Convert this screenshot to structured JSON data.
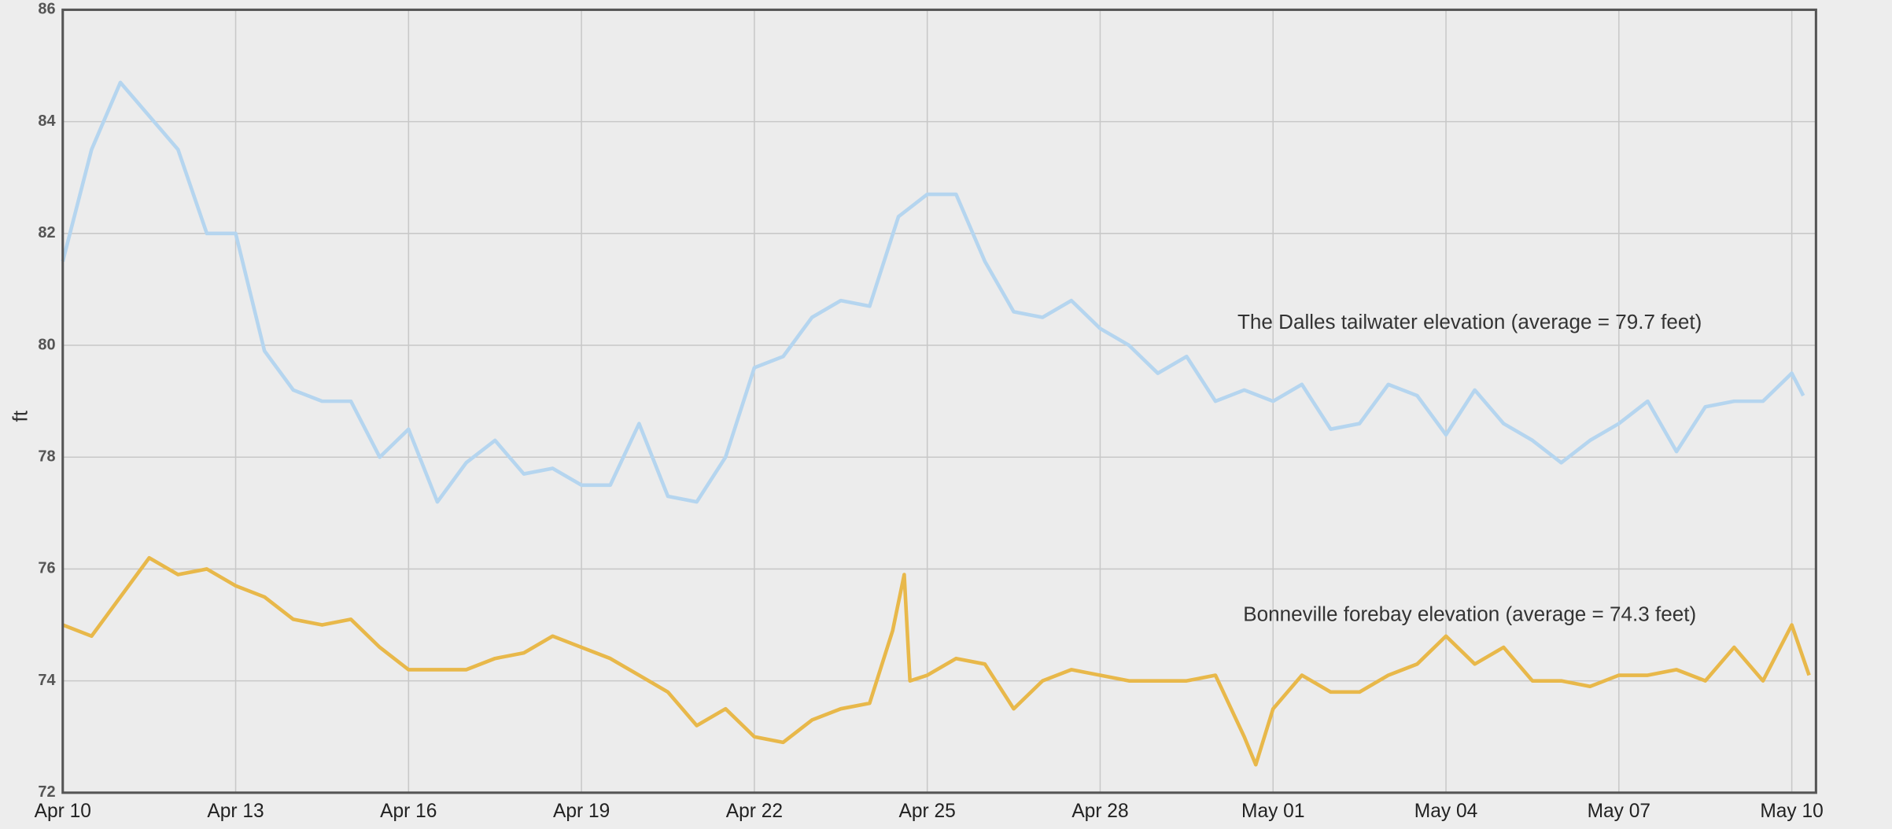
{
  "chart_data": {
    "type": "line",
    "ylabel": "ft",
    "annotations": [
      "The Dalles tailwater elevation (average = 79.7 feet)",
      "Bonneville forebay elevation (average = 74.3 feet)"
    ],
    "xlim": [
      0,
      30.42
    ],
    "xticks": [
      {
        "value": 0,
        "label": "Apr 10"
      },
      {
        "value": 3,
        "label": "Apr 13"
      },
      {
        "value": 6,
        "label": "Apr 16"
      },
      {
        "value": 9,
        "label": "Apr 19"
      },
      {
        "value": 12,
        "label": "Apr 22"
      },
      {
        "value": 15,
        "label": "Apr 25"
      },
      {
        "value": 18,
        "label": "Apr 28"
      },
      {
        "value": 21,
        "label": "May 01"
      },
      {
        "value": 24,
        "label": "May 04"
      },
      {
        "value": 27,
        "label": "May 07"
      },
      {
        "value": 30,
        "label": "May 10"
      }
    ],
    "ylim": [
      72,
      86
    ],
    "yticks": [
      72,
      74,
      76,
      78,
      80,
      82,
      84,
      86
    ],
    "grid": true,
    "series": [
      {
        "color": "#b5d5ef",
        "x": [
          0,
          0.5,
          1,
          1.5,
          2,
          2.5,
          3,
          3.5,
          4,
          4.5,
          5,
          5.5,
          6,
          6.5,
          7,
          7.5,
          8,
          8.5,
          9,
          9.5,
          10,
          10.5,
          11,
          11.5,
          12,
          12.5,
          13,
          13.5,
          14,
          14.5,
          15,
          15.5,
          16,
          16.5,
          17,
          17.5,
          18,
          18.5,
          19,
          19.5,
          20,
          20.5,
          21,
          21.5,
          22,
          22.5,
          23,
          23.5,
          24,
          24.5,
          25,
          25.5,
          26,
          26.5,
          27,
          27.5,
          28,
          28.5,
          29,
          29.5,
          30,
          30.2
        ],
        "values": [
          81.5,
          83.5,
          84.7,
          84.1,
          83.5,
          82.0,
          82.0,
          79.9,
          79.2,
          79.0,
          79.0,
          78.0,
          78.5,
          77.2,
          77.9,
          78.3,
          77.7,
          77.8,
          77.5,
          77.5,
          78.6,
          77.3,
          77.2,
          78.0,
          79.6,
          79.8,
          80.5,
          80.8,
          80.7,
          82.3,
          82.7,
          82.7,
          81.5,
          80.6,
          80.5,
          80.8,
          80.3,
          80.0,
          79.5,
          79.8,
          79.0,
          79.2,
          79.0,
          79.3,
          78.5,
          78.6,
          79.3,
          79.1,
          78.4,
          79.2,
          78.6,
          78.3,
          77.9,
          78.3,
          78.6,
          79.0,
          78.1,
          78.9,
          79.0,
          79.0,
          79.5,
          79.1
        ]
      },
      {
        "color": "#e8b84a",
        "x": [
          0,
          0.5,
          1,
          1.5,
          2,
          2.5,
          3,
          3.5,
          4,
          4.5,
          5,
          5.5,
          6,
          6.5,
          7,
          7.5,
          8,
          8.5,
          9,
          9.5,
          10,
          10.5,
          11,
          11.5,
          12,
          12.5,
          13,
          13.5,
          14,
          14.4,
          14.6,
          14.7,
          15,
          15.5,
          16,
          16.5,
          17,
          17.5,
          18,
          18.5,
          19,
          19.5,
          20,
          20.5,
          20.7,
          21,
          21.5,
          22,
          22.5,
          23,
          23.5,
          24,
          24.5,
          25,
          25.5,
          26,
          26.5,
          27,
          27.5,
          28,
          28.5,
          29,
          29.5,
          30,
          30.3
        ],
        "values": [
          75.0,
          74.8,
          75.5,
          76.2,
          75.9,
          76.0,
          75.7,
          75.5,
          75.1,
          75.0,
          75.1,
          74.6,
          74.2,
          74.2,
          74.2,
          74.4,
          74.5,
          74.8,
          74.6,
          74.4,
          74.1,
          73.8,
          73.2,
          73.5,
          73.0,
          72.9,
          73.3,
          73.5,
          73.6,
          74.9,
          75.9,
          74.0,
          74.1,
          74.4,
          74.3,
          73.5,
          74.0,
          74.2,
          74.1,
          74.0,
          74.0,
          74.0,
          74.1,
          73.0,
          72.5,
          73.5,
          74.1,
          73.8,
          73.8,
          74.1,
          74.3,
          74.8,
          74.3,
          74.6,
          74.0,
          74.0,
          73.9,
          74.1,
          74.1,
          74.2,
          74.0,
          74.6,
          74.0,
          75.0,
          74.1
        ]
      }
    ]
  }
}
